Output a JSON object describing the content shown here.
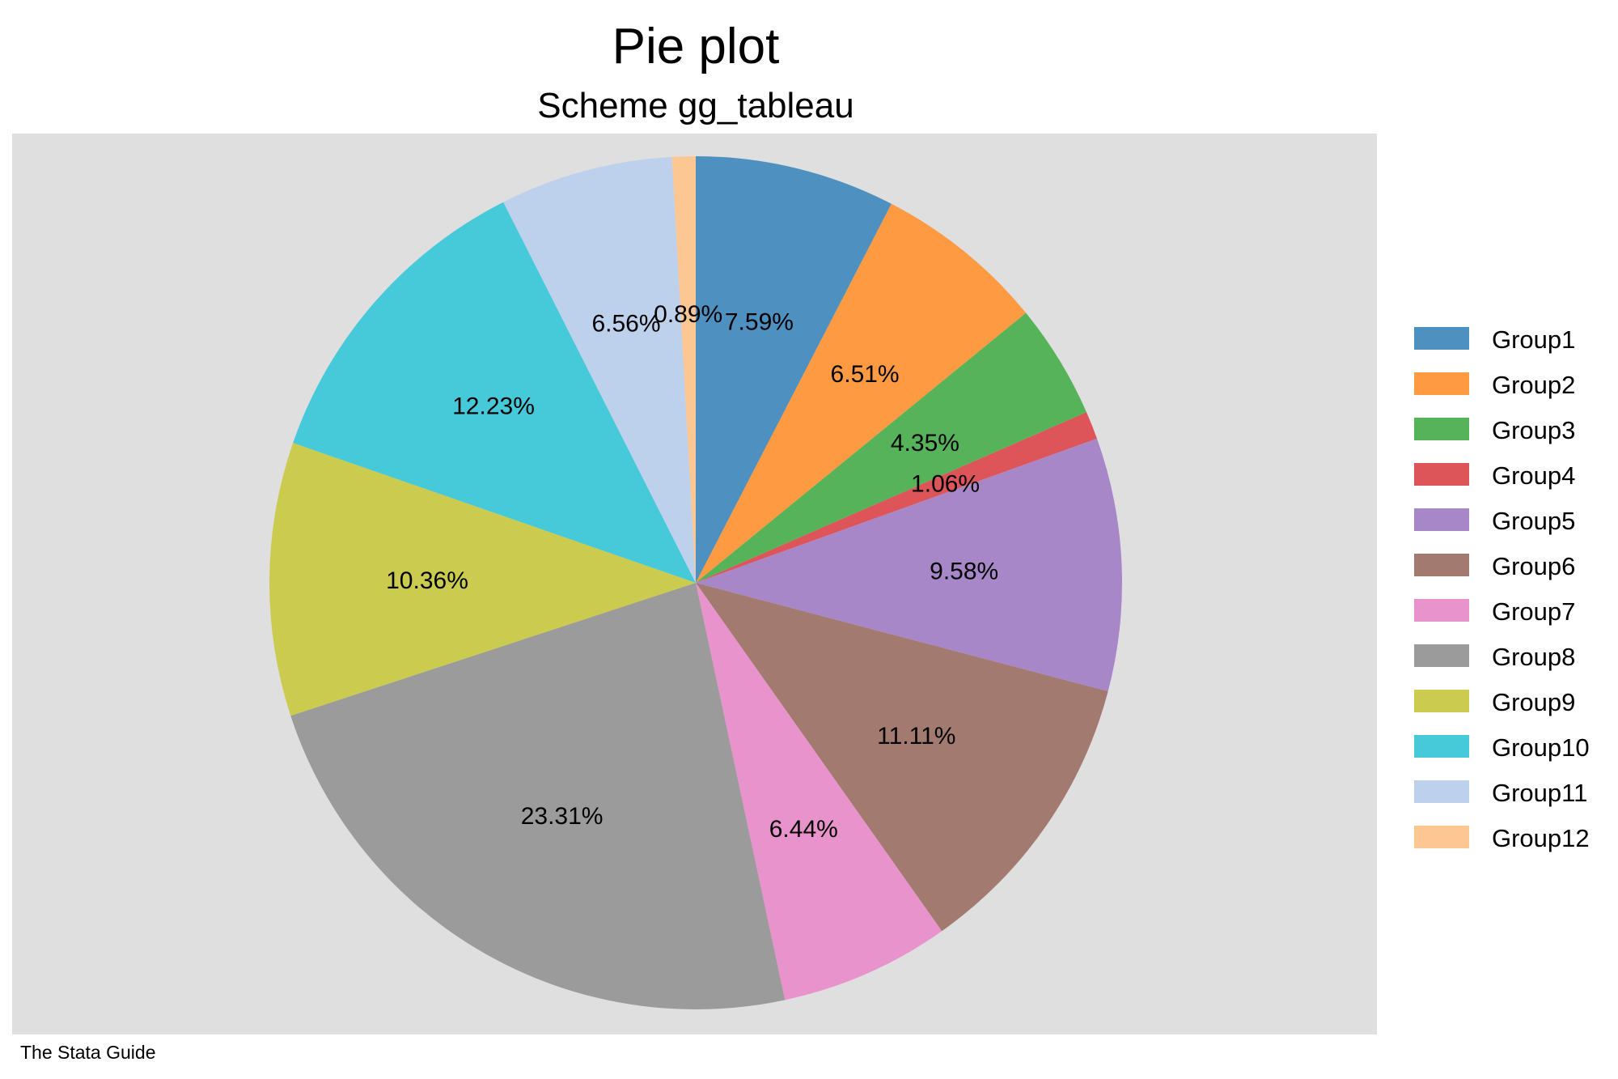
{
  "chart_data": {
    "type": "pie",
    "title": "Pie plot",
    "subtitle": "Scheme gg_tableau",
    "note": "The Stata Guide",
    "legend_position": "right",
    "start_angle": "12 o'clock",
    "direction": "clockwise",
    "background_color": "#dfdfdf",
    "slices": [
      {
        "label": "Group1",
        "value": 7.59,
        "value_label": "7.59%",
        "color": "#4e90c0"
      },
      {
        "label": "Group2",
        "value": 6.51,
        "value_label": "6.51%",
        "color": "#fd9a42"
      },
      {
        "label": "Group3",
        "value": 4.35,
        "value_label": "4.35%",
        "color": "#57b35a"
      },
      {
        "label": "Group4",
        "value": 1.06,
        "value_label": "1.06%",
        "color": "#dd5459"
      },
      {
        "label": "Group5",
        "value": 9.58,
        "value_label": "9.58%",
        "color": "#a887c9"
      },
      {
        "label": "Group6",
        "value": 11.11,
        "value_label": "11.11%",
        "color": "#a27a6f"
      },
      {
        "label": "Group7",
        "value": 6.44,
        "value_label": "6.44%",
        "color": "#e993cd"
      },
      {
        "label": "Group8",
        "value": 23.31,
        "value_label": "23.31%",
        "color": "#9b9b9b"
      },
      {
        "label": "Group9",
        "value": 10.36,
        "value_label": "10.36%",
        "color": "#cbcb4f"
      },
      {
        "label": "Group10",
        "value": 12.23,
        "value_label": "12.23%",
        "color": "#46c9d9"
      },
      {
        "label": "Group11",
        "value": 6.56,
        "value_label": "6.56%",
        "color": "#bed1ec"
      },
      {
        "label": "Group12",
        "value": 0.89,
        "value_label": "0.89%",
        "color": "#fdc794"
      }
    ]
  }
}
